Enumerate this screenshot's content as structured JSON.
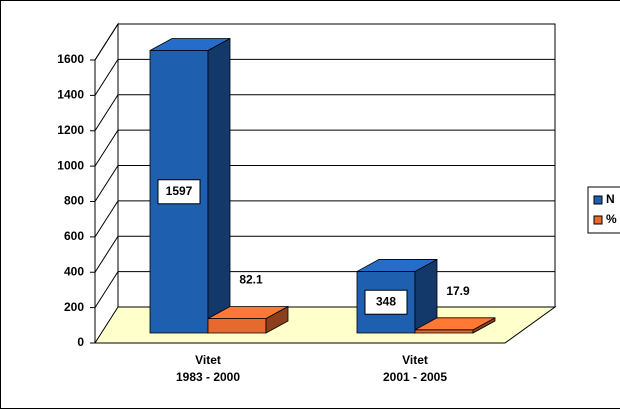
{
  "chart_data": {
    "type": "bar3d",
    "categories": [
      "Vitet\n1983 - 2000",
      "Vitet\n2001 - 2005"
    ],
    "series": [
      {
        "name": "N",
        "color": "#1f5fb0",
        "values": [
          1597,
          348
        ]
      },
      {
        "name": "%",
        "color": "#e8692e",
        "values": [
          82.1,
          17.9
        ]
      }
    ],
    "ylim": [
      0,
      1600
    ],
    "yticks": [
      0,
      200,
      400,
      600,
      800,
      1000,
      1200,
      1400,
      1600
    ],
    "grid": true,
    "legend": "right"
  }
}
